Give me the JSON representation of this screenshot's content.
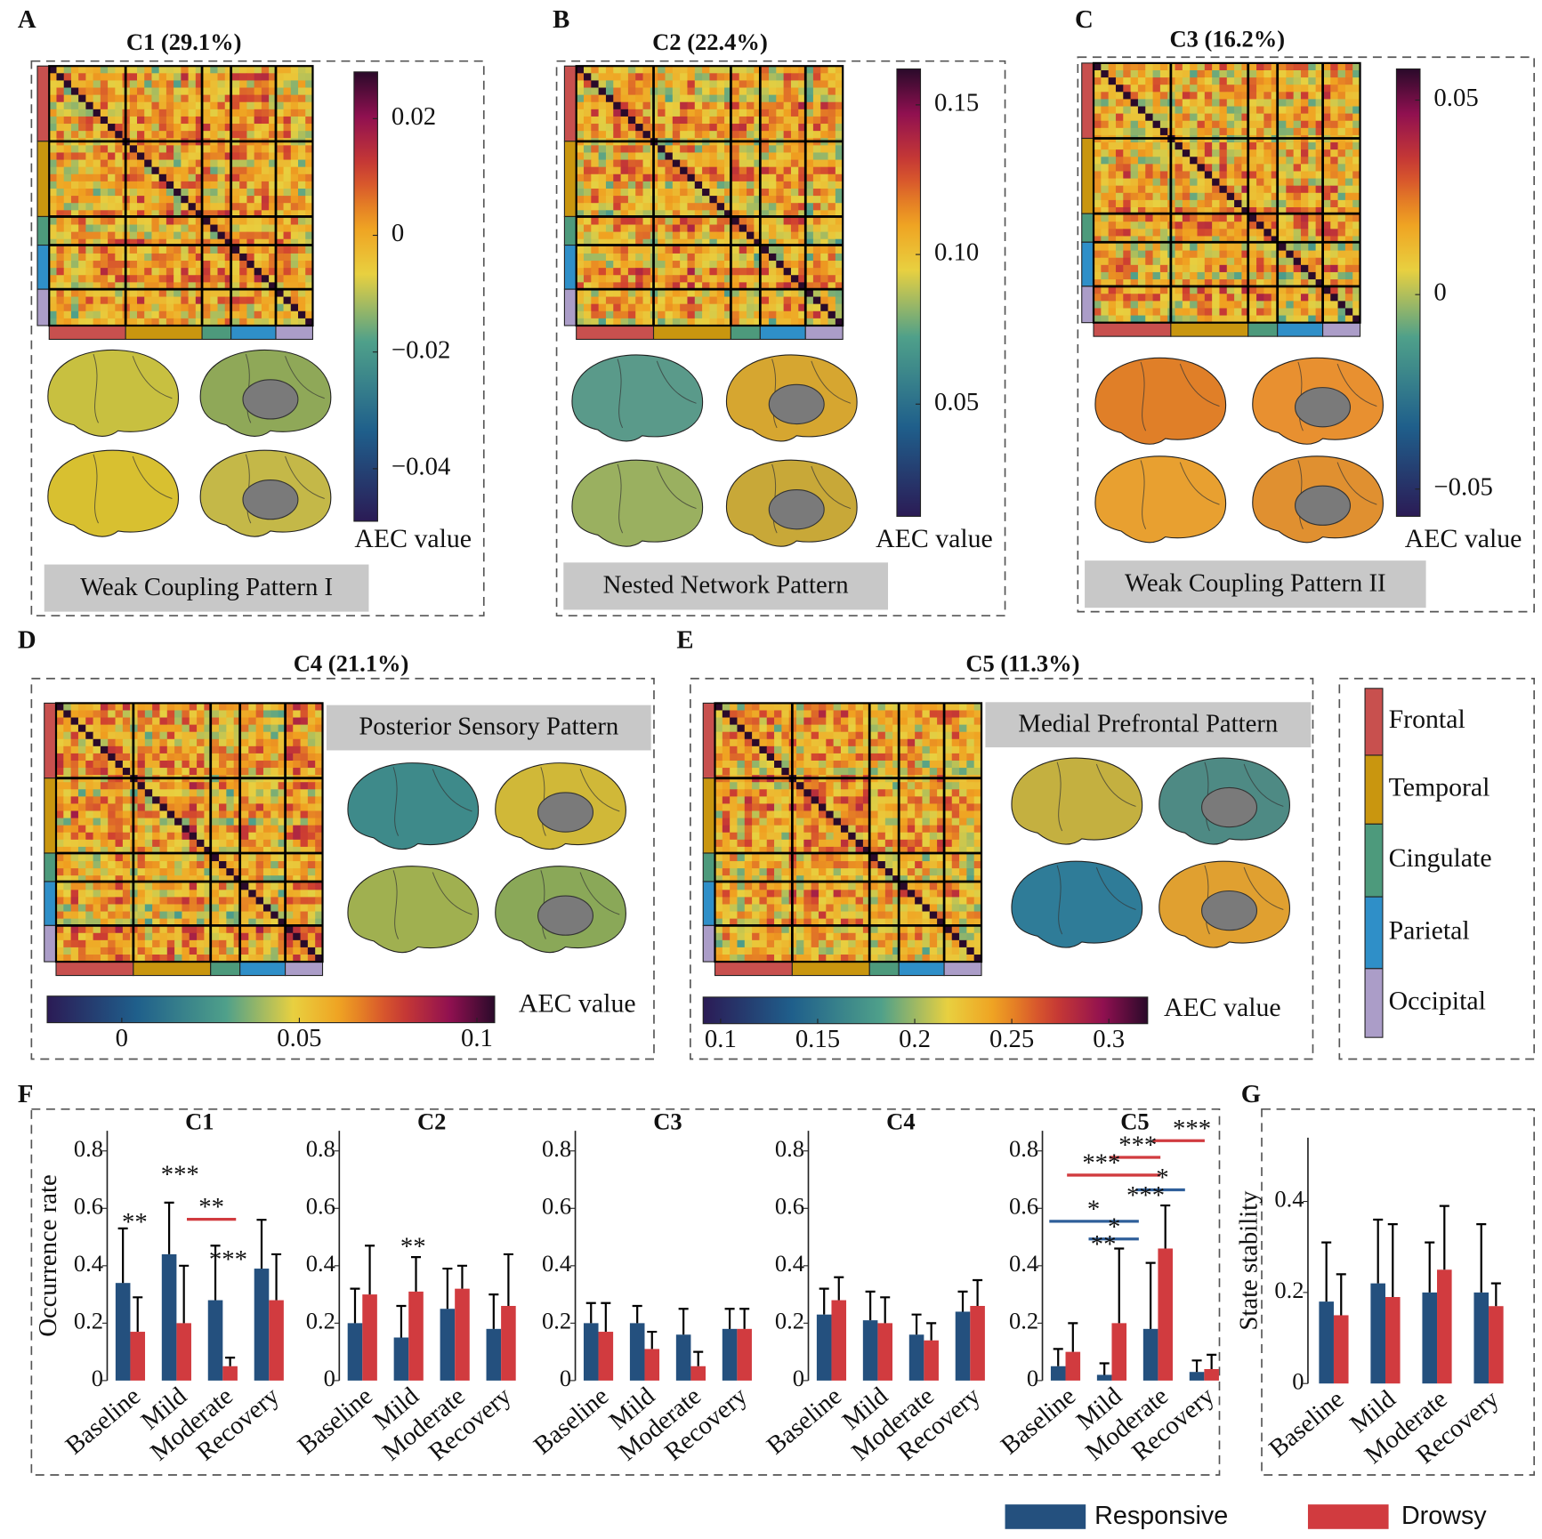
{
  "panel_labels": [
    "A",
    "B",
    "C",
    "D",
    "E",
    "F",
    "G"
  ],
  "regions": [
    {
      "name": "Frontal",
      "color": "#c8504e"
    },
    {
      "name": "Temporal",
      "color": "#c9960f"
    },
    {
      "name": "Cingulate",
      "color": "#4d9a7c"
    },
    {
      "name": "Parietal",
      "color": "#2f8fc8"
    },
    {
      "name": "Occipital",
      "color": "#ab9dc8"
    }
  ],
  "chart_data": [
    {
      "type": "heatmap",
      "title": "C1 (29.1%)",
      "pattern": "Weak Coupling Pattern I",
      "colorbar_label": "AEC value",
      "clim": [
        -0.049,
        0.028
      ],
      "cticks": [
        0.02,
        0,
        {
          "value": -0.02,
          "label": "−0.02"
        },
        {
          "value": -0.04,
          "label": "−0.04"
        }
      ]
    },
    {
      "type": "heatmap",
      "title": "C2 (22.4%)",
      "pattern": "Nested Network Pattern",
      "colorbar_label": "AEC value",
      "clim": [
        0.0125,
        0.162
      ],
      "cticks": [
        0.05,
        {
          "value": 0.1,
          "label": "0.10"
        },
        0.15
      ]
    },
    {
      "type": "heatmap",
      "title": "C3 (16.2%)",
      "pattern": "Weak Coupling Pattern II",
      "colorbar_label": "AEC value",
      "clim": [
        -0.057,
        0.058
      ],
      "cticks": [
        {
          "value": -0.05,
          "label": "−0.05"
        },
        0,
        0.05
      ]
    },
    {
      "type": "heatmap",
      "title": "C4 (21.1%)",
      "pattern": "Posterior Sensory Pattern",
      "colorbar_label": "AEC value",
      "clim": [
        -0.021,
        0.105
      ],
      "cticks": [
        0,
        0.05,
        0.1
      ]
    },
    {
      "type": "heatmap",
      "title": "C5 (11.3%)",
      "pattern": "Medial Prefrontal Pattern",
      "colorbar_label": "AEC value",
      "clim": [
        0.091,
        0.32
      ],
      "cticks": [
        0.1,
        0.15,
        0.2,
        0.25,
        0.3
      ]
    },
    {
      "type": "bar",
      "title": "C1",
      "ylabel": "Occurrence rate",
      "categories": [
        "Baseline",
        "Mild",
        "Moderate",
        "Recovery"
      ],
      "ylim": [
        0,
        0.87
      ],
      "yticks": [
        0,
        0.2,
        0.4,
        0.6,
        0.8
      ],
      "series": [
        {
          "name": "Responsive",
          "color": "#24507e",
          "values": [
            0.34,
            0.44,
            0.28,
            0.39
          ],
          "errors": [
            0.19,
            0.18,
            0.19,
            0.17
          ]
        },
        {
          "name": "Drowsy",
          "color": "#d13b3f",
          "values": [
            0.17,
            0.2,
            0.05,
            0.28
          ],
          "errors": [
            0.12,
            0.2,
            0.03,
            0.16
          ]
        }
      ],
      "annotations": [
        {
          "text": "**",
          "color": "#111111"
        },
        {
          "text": "***",
          "color": "#111111"
        },
        {
          "text": "**",
          "color": "#d13b3f"
        },
        {
          "text": "***",
          "color": "#111111"
        }
      ]
    },
    {
      "type": "bar",
      "title": "C2",
      "categories": [
        "Baseline",
        "Mild",
        "Moderate",
        "Recovery"
      ],
      "ylim": [
        0,
        0.87
      ],
      "yticks": [
        0,
        0.2,
        0.4,
        0.6,
        0.8
      ],
      "series": [
        {
          "name": "Responsive",
          "color": "#24507e",
          "values": [
            0.2,
            0.15,
            0.25,
            0.18
          ],
          "errors": [
            0.12,
            0.11,
            0.14,
            0.12
          ]
        },
        {
          "name": "Drowsy",
          "color": "#d13b3f",
          "values": [
            0.3,
            0.31,
            0.32,
            0.26
          ],
          "errors": [
            0.17,
            0.12,
            0.08,
            0.18
          ]
        }
      ],
      "annotations": [
        {
          "text": "**",
          "color": "#111111"
        }
      ]
    },
    {
      "type": "bar",
      "title": "C3",
      "categories": [
        "Baseline",
        "Mild",
        "Moderate",
        "Recovery"
      ],
      "ylim": [
        0,
        0.87
      ],
      "yticks": [
        0,
        0.2,
        0.4,
        0.6,
        0.8
      ],
      "series": [
        {
          "name": "Responsive",
          "color": "#24507e",
          "values": [
            0.2,
            0.2,
            0.16,
            0.18
          ],
          "errors": [
            0.07,
            0.06,
            0.09,
            0.07
          ]
        },
        {
          "name": "Drowsy",
          "color": "#d13b3f",
          "values": [
            0.17,
            0.11,
            0.05,
            0.18
          ],
          "errors": [
            0.1,
            0.06,
            0.05,
            0.07
          ]
        }
      ],
      "annotations": []
    },
    {
      "type": "bar",
      "title": "C4",
      "categories": [
        "Baseline",
        "Mild",
        "Moderate",
        "Recovery"
      ],
      "ylim": [
        0,
        0.87
      ],
      "yticks": [
        0,
        0.2,
        0.4,
        0.6,
        0.8
      ],
      "series": [
        {
          "name": "Responsive",
          "color": "#24507e",
          "values": [
            0.23,
            0.21,
            0.16,
            0.24
          ],
          "errors": [
            0.09,
            0.1,
            0.07,
            0.07
          ]
        },
        {
          "name": "Drowsy",
          "color": "#d13b3f",
          "values": [
            0.28,
            0.2,
            0.14,
            0.26
          ],
          "errors": [
            0.08,
            0.09,
            0.06,
            0.09
          ]
        }
      ],
      "annotations": []
    },
    {
      "type": "bar",
      "title": "C5",
      "categories": [
        "Baseline",
        "Mild",
        "Moderate",
        "Recovery"
      ],
      "ylim": [
        0,
        0.87
      ],
      "yticks": [
        0,
        0.2,
        0.4,
        0.6,
        0.8
      ],
      "series": [
        {
          "name": "Responsive",
          "color": "#24507e",
          "values": [
            0.05,
            0.02,
            0.18,
            0.03
          ],
          "errors": [
            0.06,
            0.04,
            0.23,
            0.04
          ]
        },
        {
          "name": "Drowsy",
          "color": "#d13b3f",
          "values": [
            0.1,
            0.2,
            0.46,
            0.04
          ],
          "errors": [
            0.1,
            0.26,
            0.15,
            0.05
          ]
        }
      ],
      "annotations": [
        {
          "text": "***",
          "color": "#d13b3f"
        },
        {
          "text": "***",
          "color": "#d13b3f"
        },
        {
          "text": "***",
          "color": "#d13b3f"
        },
        {
          "text": "*",
          "color": "#2f5f9a"
        },
        {
          "text": "***",
          "color": "#111111"
        },
        {
          "text": "*",
          "color": "#2f5f9a"
        },
        {
          "text": "*",
          "color": "#2f5f9a"
        },
        {
          "text": "**",
          "color": "#111111"
        }
      ]
    },
    {
      "type": "bar",
      "ylabel": "State stability",
      "categories": [
        "Baseline",
        "Mild",
        "Moderate",
        "Recovery"
      ],
      "ylim": [
        0,
        0.54
      ],
      "yticks": [
        0,
        0.2,
        0.4
      ],
      "series": [
        {
          "name": "Responsive",
          "color": "#24507e",
          "values": [
            0.18,
            0.22,
            0.2,
            0.2
          ],
          "errors": [
            0.13,
            0.14,
            0.11,
            0.15
          ]
        },
        {
          "name": "Drowsy",
          "color": "#d13b3f",
          "values": [
            0.15,
            0.19,
            0.25,
            0.17
          ],
          "errors": [
            0.09,
            0.16,
            0.14,
            0.05
          ]
        }
      ],
      "annotations": []
    }
  ]
}
